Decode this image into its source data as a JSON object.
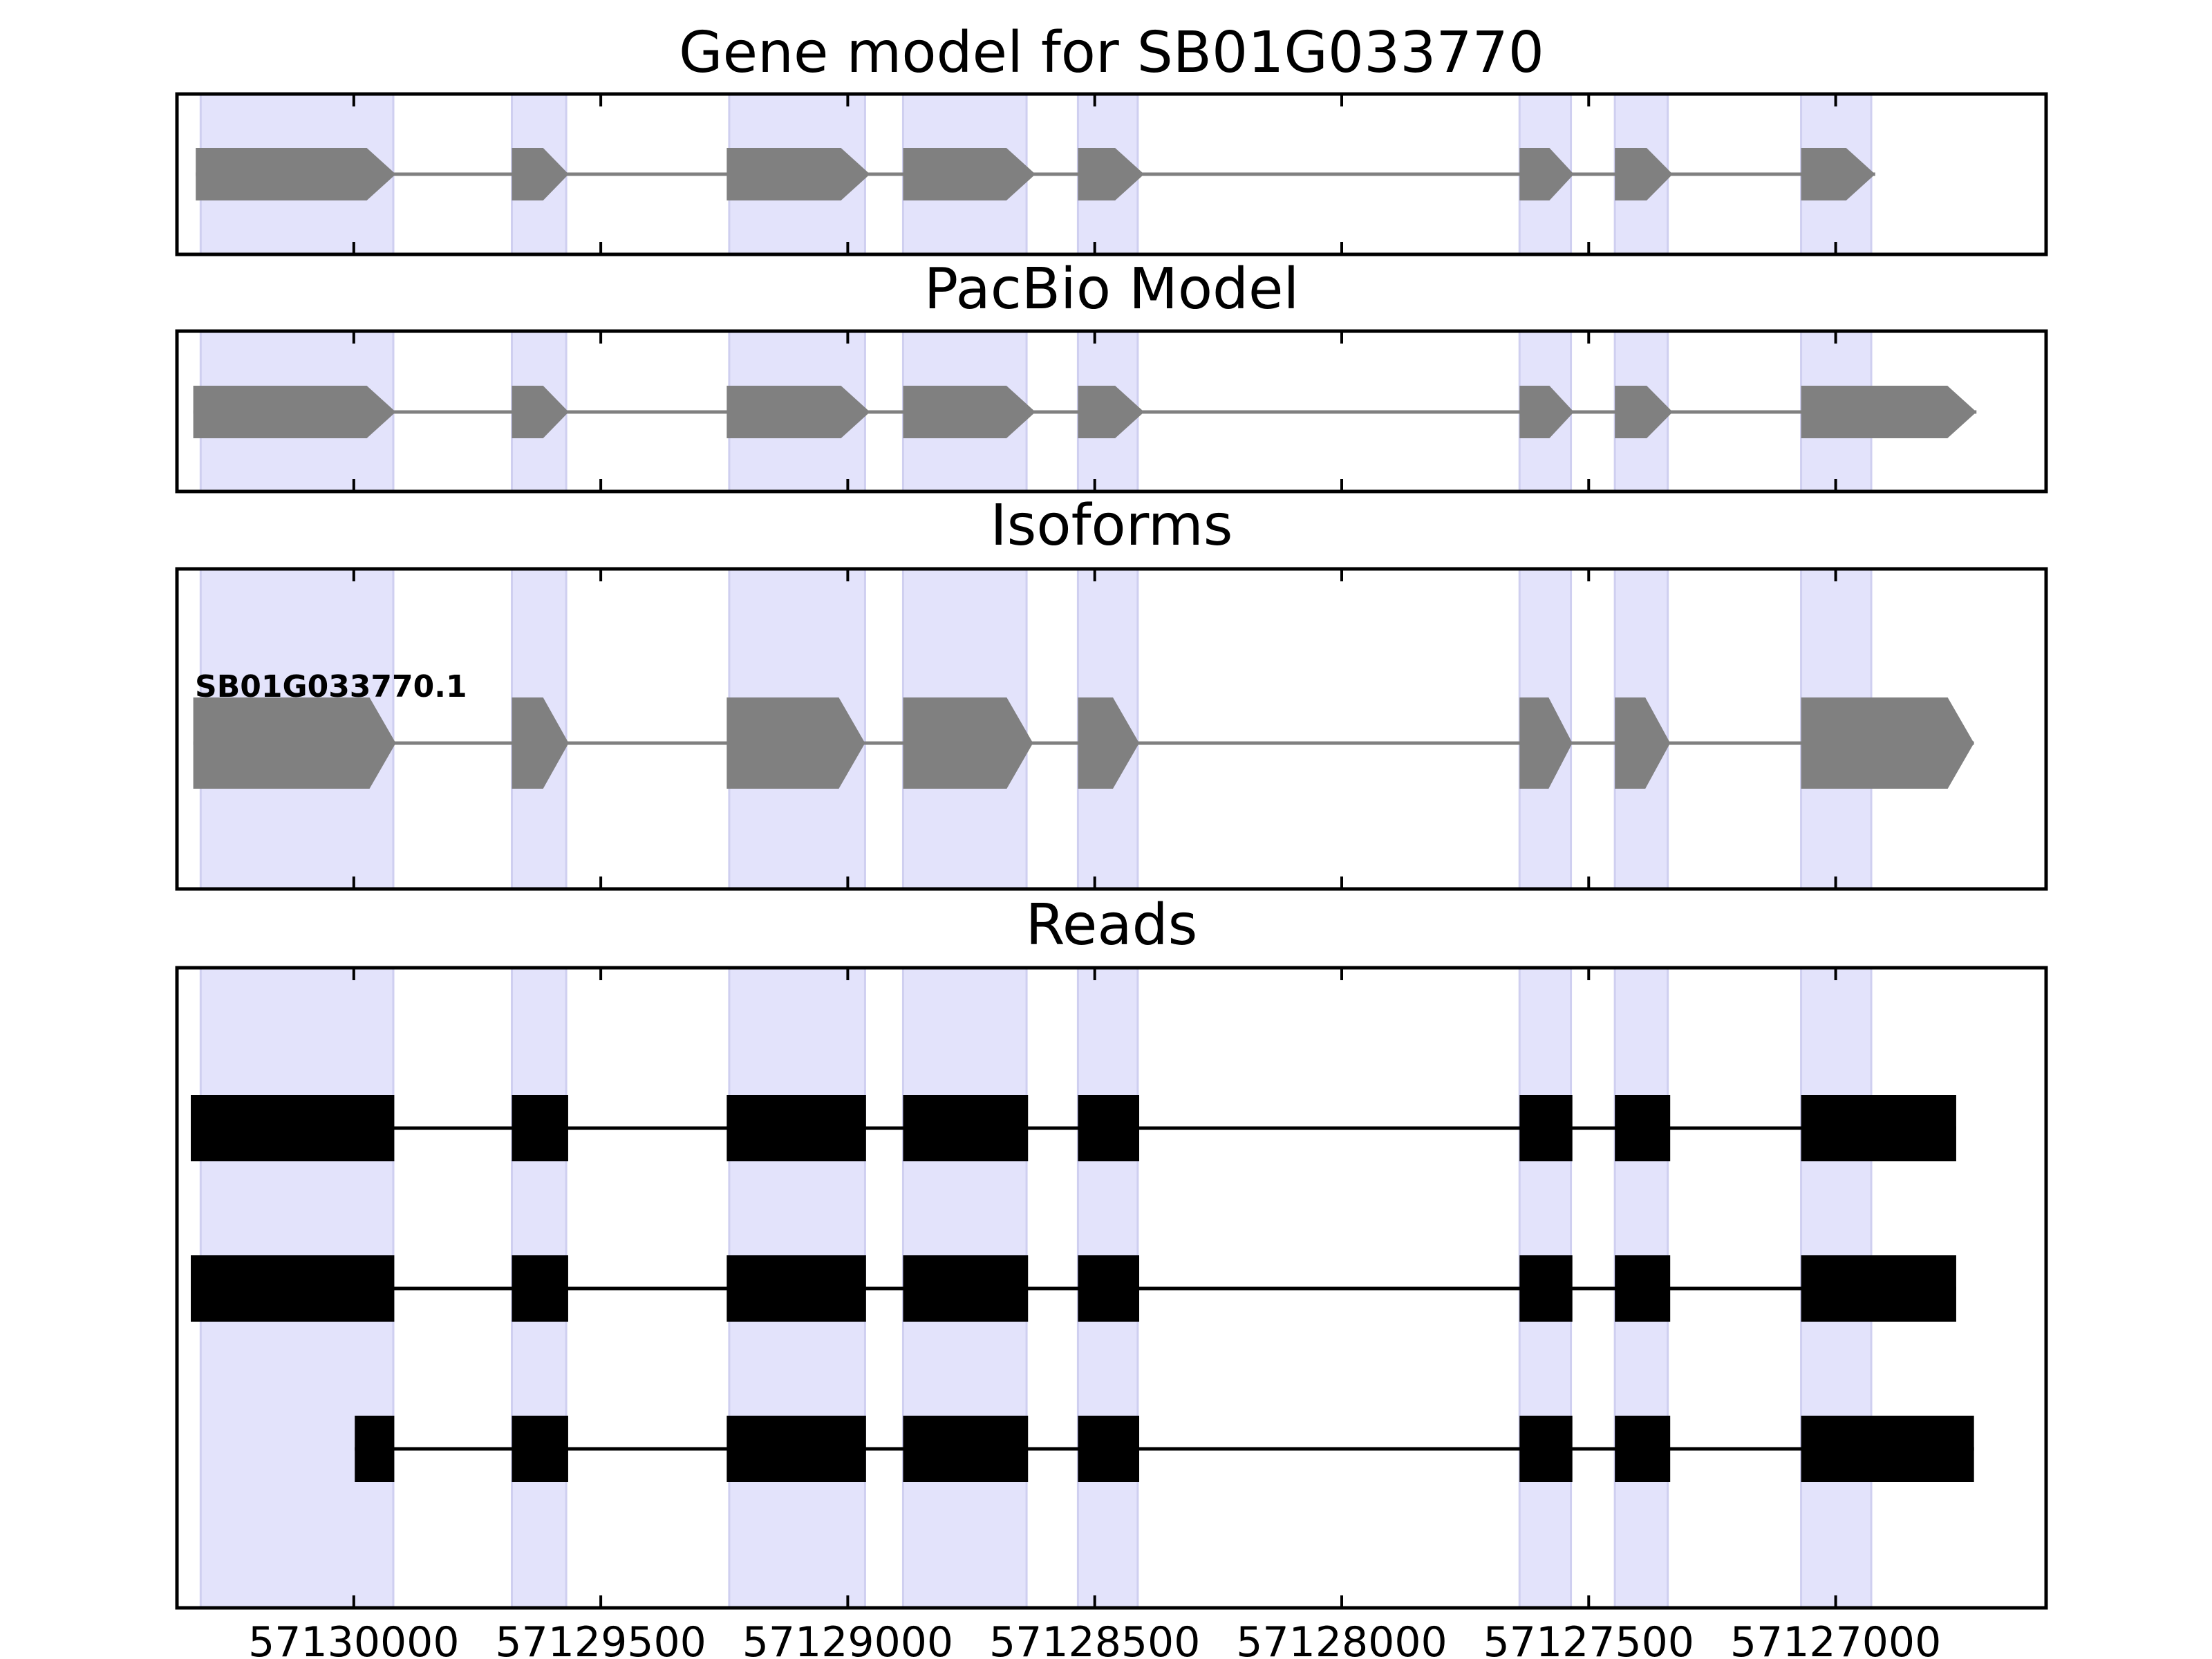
{
  "chart_data": {
    "type": "gene-structure",
    "coordinates": "genomic position, decreasing left to right",
    "xlim": [
      57130358,
      57126574
    ],
    "xticks": [
      57130000,
      57129500,
      57129000,
      57128500,
      57128000,
      57127500,
      57127000
    ],
    "xtick_labels": [
      "57130000",
      "57129500",
      "57129000",
      "57128500",
      "57128000",
      "57127500",
      "57127000"
    ],
    "highlight_exons": [
      [
        57130310,
        57129920
      ],
      [
        57129680,
        57129570
      ],
      [
        57129240,
        57128965
      ],
      [
        57128888,
        57128638
      ],
      [
        57128534,
        57128413
      ],
      [
        57127640,
        57127536
      ],
      [
        57127447,
        57127340
      ],
      [
        57127070,
        57126928
      ]
    ],
    "highlight_color": "#e3e3fb",
    "panels": [
      {
        "id": "gene-model",
        "title": "Gene model for SB01G033770",
        "style": "arrow",
        "color": "#808080",
        "tracks": [
          {
            "label": "",
            "exons": [
              [
                57130320,
                57129915
              ],
              [
                57129680,
                57129565
              ],
              [
                57129245,
                57128955
              ],
              [
                57128888,
                57128620
              ],
              [
                57128534,
                57128400
              ],
              [
                57127640,
                57127530
              ],
              [
                57127447,
                57127330
              ],
              [
                57127070,
                57126920
              ]
            ]
          }
        ]
      },
      {
        "id": "pacbio-model",
        "title": "PacBio Model",
        "style": "arrow",
        "color": "#808080",
        "tracks": [
          {
            "label": "",
            "exons": [
              [
                57130325,
                57129915
              ],
              [
                57129680,
                57129565
              ],
              [
                57129245,
                57128955
              ],
              [
                57128888,
                57128620
              ],
              [
                57128534,
                57128400
              ],
              [
                57127640,
                57127530
              ],
              [
                57127447,
                57127330
              ],
              [
                57127070,
                57126715
              ]
            ]
          }
        ]
      },
      {
        "id": "isoforms",
        "title": "Isoforms",
        "style": "arrow",
        "color": "#808080",
        "tracks": [
          {
            "label": "SB01G033770.1",
            "exons": [
              [
                57130325,
                57129915
              ],
              [
                57129680,
                57129565
              ],
              [
                57129245,
                57128965
              ],
              [
                57128888,
                57128625
              ],
              [
                57128534,
                57128410
              ],
              [
                57127640,
                57127533
              ],
              [
                57127447,
                57127335
              ],
              [
                57127070,
                57126720
              ]
            ]
          }
        ]
      },
      {
        "id": "reads",
        "title": "Reads",
        "style": "box",
        "color": "#000000",
        "tracks": [
          {
            "label": "",
            "exons": [
              [
                57130330,
                57129918
              ],
              [
                57129680,
                57129566
              ],
              [
                57129245,
                57128963
              ],
              [
                57128888,
                57128635
              ],
              [
                57128534,
                57128410
              ],
              [
                57127640,
                57127533
              ],
              [
                57127447,
                57127335
              ],
              [
                57127070,
                57126756
              ]
            ]
          },
          {
            "label": "",
            "exons": [
              [
                57130330,
                57129918
              ],
              [
                57129680,
                57129566
              ],
              [
                57129245,
                57128963
              ],
              [
                57128888,
                57128635
              ],
              [
                57128534,
                57128410
              ],
              [
                57127640,
                57127533
              ],
              [
                57127447,
                57127335
              ],
              [
                57127070,
                57126756
              ]
            ]
          },
          {
            "label": "",
            "exons": [
              [
                57129998,
                57129918
              ],
              [
                57129680,
                57129566
              ],
              [
                57129245,
                57128963
              ],
              [
                57128888,
                57128635
              ],
              [
                57128534,
                57128410
              ],
              [
                57127640,
                57127533
              ],
              [
                57127447,
                57127335
              ],
              [
                57127070,
                57126720
              ]
            ]
          }
        ]
      }
    ]
  }
}
